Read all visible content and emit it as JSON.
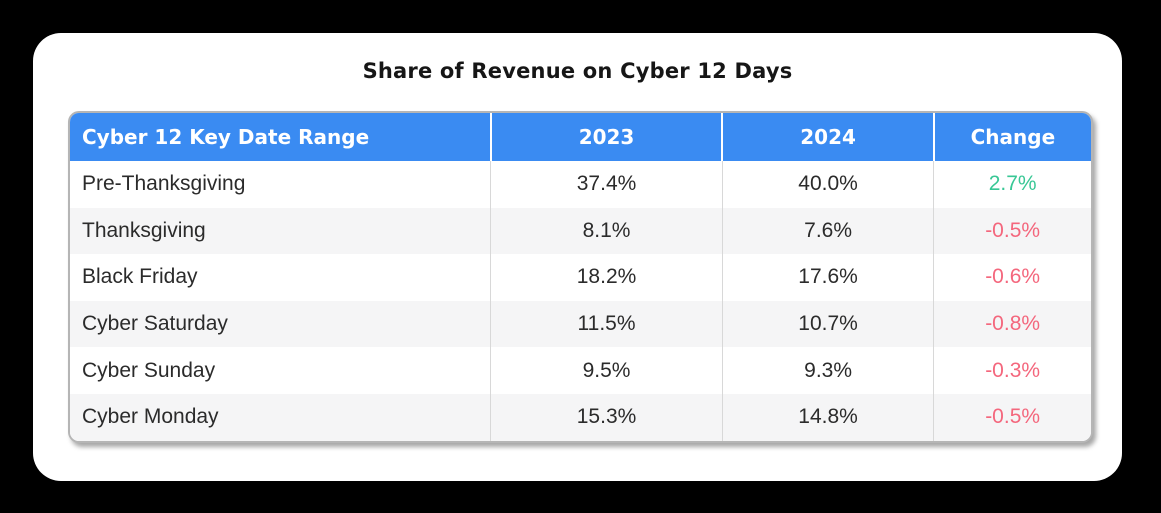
{
  "page": {
    "background_color": "#000000",
    "card_color": "#ffffff"
  },
  "title": "Share of Revenue on Cyber 12 Days",
  "table": {
    "header_color": "#3a8bf2",
    "header_text_color": "#ffffff",
    "positive_color": "#38c795",
    "negative_color": "#f4677d",
    "alt_row_color": "#f5f5f6",
    "columns": [
      "Cyber 12 Key Date Range",
      "2023",
      "2024",
      "Change"
    ],
    "rows": [
      {
        "label": "Pre-Thanksgiving",
        "y2023": "37.4%",
        "y2024": "40.0%",
        "change": "2.7%"
      },
      {
        "label": "Thanksgiving",
        "y2023": "8.1%",
        "y2024": "7.6%",
        "change": "-0.5%"
      },
      {
        "label": "Black Friday",
        "y2023": "18.2%",
        "y2024": "17.6%",
        "change": "-0.6%"
      },
      {
        "label": "Cyber Saturday",
        "y2023": "11.5%",
        "y2024": "10.7%",
        "change": "-0.8%"
      },
      {
        "label": "Cyber Sunday",
        "y2023": "9.5%",
        "y2024": "9.3%",
        "change": "-0.3%"
      },
      {
        "label": "Cyber Monday",
        "y2023": "15.3%",
        "y2024": "14.8%",
        "change": "-0.5%"
      }
    ]
  },
  "chart_data": {
    "type": "table",
    "title": "Share of Revenue on Cyber 12 Days",
    "columns": [
      "Cyber 12 Key Date Range",
      "2023",
      "2024",
      "Change"
    ],
    "units": "percent",
    "rows": [
      [
        "Pre-Thanksgiving",
        37.4,
        40.0,
        2.7
      ],
      [
        "Thanksgiving",
        8.1,
        7.6,
        -0.5
      ],
      [
        "Black Friday",
        18.2,
        17.6,
        -0.6
      ],
      [
        "Cyber Saturday",
        11.5,
        10.7,
        -0.8
      ],
      [
        "Cyber Sunday",
        9.5,
        9.3,
        -0.3
      ],
      [
        "Cyber Monday",
        15.3,
        14.8,
        -0.5
      ]
    ]
  }
}
